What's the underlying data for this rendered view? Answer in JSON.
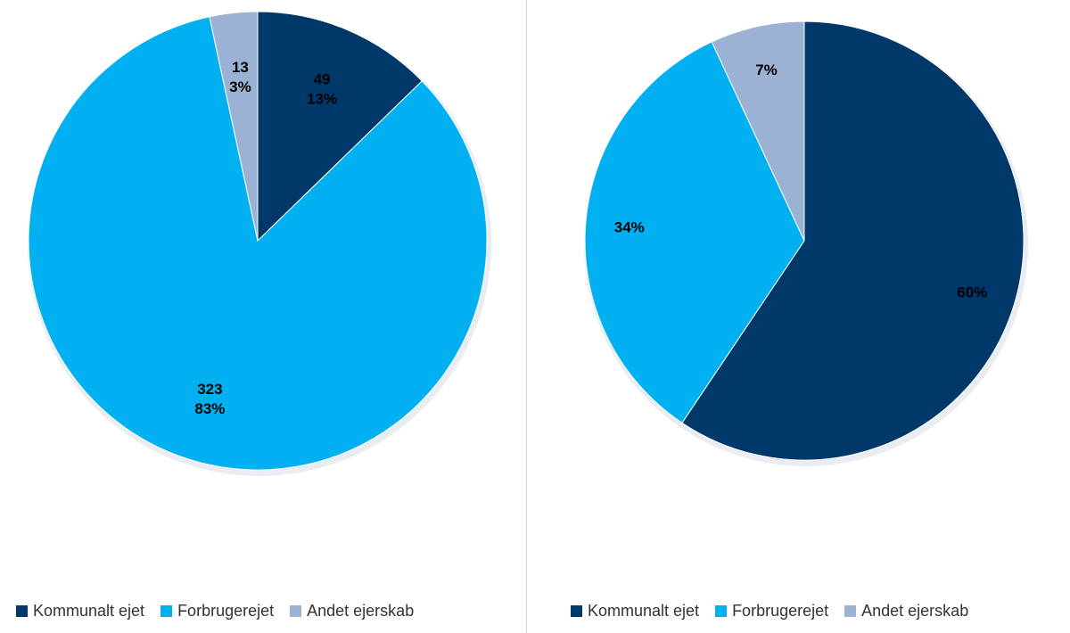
{
  "colors": {
    "Kommunalt ejet": "#003869",
    "Forbrugerejet": "#00b0f0",
    "Andet ejerskab": "#9bb2d4"
  },
  "chart_data": [
    {
      "type": "pie",
      "title": "",
      "start_angle_deg": 0,
      "direction": "clockwise",
      "legend_position": "bottom",
      "slices": [
        {
          "label": "Kommunalt ejet",
          "value": 49,
          "percent": "13%",
          "display": [
            "49",
            "13%"
          ]
        },
        {
          "label": "Forbrugerejet",
          "value": 323,
          "percent": "83%",
          "display": [
            "323",
            "83%"
          ]
        },
        {
          "label": "Andet ejerskab",
          "value": 13,
          "percent": "3%",
          "display": [
            "13",
            "3%"
          ]
        }
      ]
    },
    {
      "type": "pie",
      "title": "",
      "start_angle_deg": 0,
      "direction": "clockwise",
      "legend_position": "bottom",
      "slices": [
        {
          "label": "Kommunalt ejet",
          "value": 60,
          "percent": "60%",
          "display": [
            "60%"
          ]
        },
        {
          "label": "Forbrugerejet",
          "value": 34,
          "percent": "34%",
          "display": [
            "34%"
          ]
        },
        {
          "label": "Andet ejerskab",
          "value": 7,
          "percent": "7%",
          "display": [
            "7%"
          ]
        }
      ]
    }
  ],
  "legends": [
    {
      "items": [
        "Kommunalt ejet",
        "Forbrugerejet",
        "Andet ejerskab"
      ]
    },
    {
      "items": [
        "Kommunalt ejet",
        "Forbrugerejet",
        "Andet ejerskab"
      ]
    }
  ]
}
